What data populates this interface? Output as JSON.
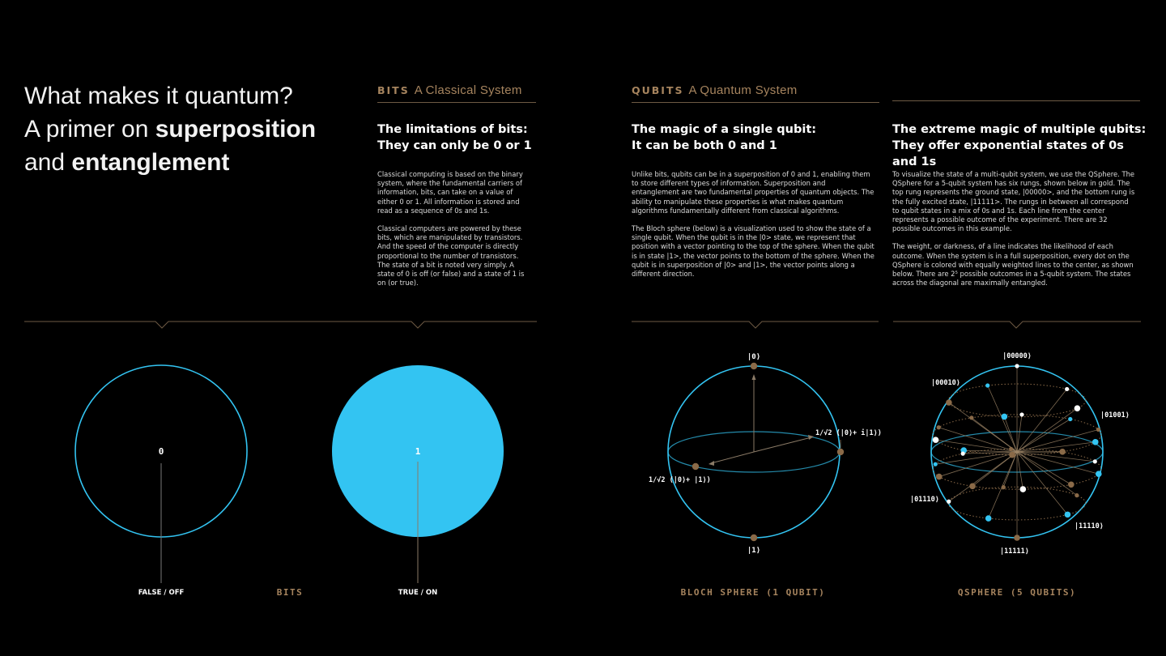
{
  "hero": {
    "line1": "What makes it quantum?",
    "line2_pre": "A primer on ",
    "line2_bold": "superposition",
    "line3_pre": "and ",
    "line3_bold": "entanglement"
  },
  "bits": {
    "tag": "BITS",
    "subtitle": "A Classical System",
    "heading_l1": "The limitations of bits:",
    "heading_l2": "They can only be 0 or 1",
    "p1": "Classical computing is based on the binary system, where the fundamental carriers of information, bits, can take on a value of either 0 or 1. All information is stored and read as a sequence of 0s and 1s.",
    "p2": "Classical computers are powered by these bits, which are manipulated by transistors. And the speed of the computer is directly proportional to the number of transistors. The state of a bit is noted very simply. A state of 0 is off (or false) and a state of 1 is on (or true).",
    "zero_label": "0",
    "one_label": "1",
    "false_caption": "FALSE / OFF",
    "true_caption": "TRUE / ON",
    "caption": "BITS"
  },
  "qubits": {
    "tag": "QUBITS",
    "subtitle": "A Quantum System",
    "heading_l1": "The magic of a single qubit:",
    "heading_l2": "It can be both 0 and 1",
    "p1": "Unlike bits, qubits can be in a superposition of 0 and 1, enabling them to store different types of information. Superposition and entanglement are two fundamental properties of quantum objects. The ability to manipulate these properties is what makes quantum algorithms fundamentally different from classical algorithms.",
    "p2": "The Bloch sphere (below) is a visualization used to show the state of a single qubit. When the qubit is in the |0> state, we represent that position with a vector pointing to the top of the sphere. When the qubit is in state |1>, the vector points to the bottom of the sphere. When the qubit is in superposition of |0> and |1>, the vector points along a different direction.",
    "label_top": "|0⟩",
    "label_bottom": "|1⟩",
    "label_right": "1/√2 (|0⟩+ i|1⟩)",
    "label_left": "1/√2 (|0⟩+ |1⟩)",
    "caption": "BLOCH SPHERE (1 QUBIT)"
  },
  "multi": {
    "heading_l1": "The extreme magic of multiple qubits:",
    "heading_l2": "They offer exponential states of 0s and 1s",
    "p1": "To visualize the state of a multi-qubit system, we use the QSphere. The QSphere for a 5-qubit system has six rungs, shown below in gold. The top rung represents the ground state, |00000>, and the bottom rung is the fully excited state, |11111>. The rungs in between all correspond to qubit states in a mix of 0s and 1s. Each line from the center represents a possible outcome of the experiment. There are 32 possible outcomes in this example.",
    "p2": "The weight, or darkness, of a line indicates the likelihood of each outcome. When the system is in a full superposition, every dot on the QSphere is colored with equally weighted lines to the center, as shown below. There are 2⁵ possible outcomes in a 5-qubit system. The states across the diagonal are maximally entangled.",
    "label_top": "|00000⟩",
    "label_00010": "|00010⟩",
    "label_01001": "|01001⟩",
    "label_01110": "|01110⟩",
    "label_11110": "|11110⟩",
    "label_bottom": "|11111⟩",
    "caption": "QSPHERE (5 QUBITS)"
  },
  "colors": {
    "background": "#000000",
    "accent_gold": "#a6845e",
    "accent_blue": "#33c4f2",
    "divider": "#6e5a44"
  }
}
